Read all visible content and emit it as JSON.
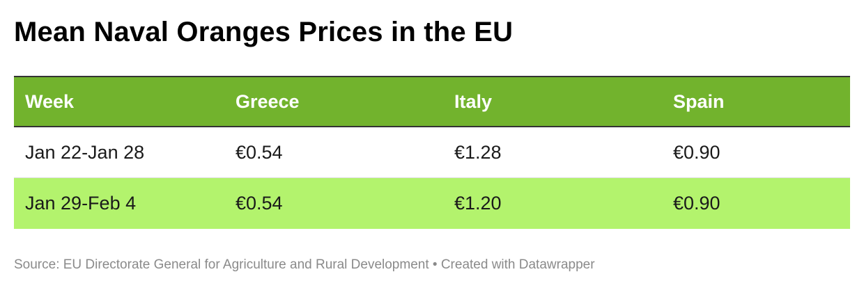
{
  "title": "Mean Naval Oranges Prices in the EU",
  "colors": {
    "header_bg": "#72b32d",
    "header_text": "#ffffff",
    "alt_row_bg": "#b3f36d",
    "row_bg": "#ffffff",
    "source_text": "#8a8a8a"
  },
  "chart_data": {
    "type": "table",
    "title": "Mean Naval Oranges Prices in the EU",
    "columns": [
      "Week",
      "Greece",
      "Italy",
      "Spain"
    ],
    "rows": [
      [
        "Jan 22-Jan 28",
        "€0.54",
        "€1.28",
        "€0.90"
      ],
      [
        "Jan 29-Feb 4",
        "€0.54",
        "€1.20",
        "€0.90"
      ]
    ],
    "series": [
      {
        "name": "Greece",
        "values": [
          0.54,
          0.54
        ]
      },
      {
        "name": "Italy",
        "values": [
          1.28,
          1.2
        ]
      },
      {
        "name": "Spain",
        "values": [
          0.9,
          0.9
        ]
      }
    ],
    "categories": [
      "Jan 22-Jan 28",
      "Jan 29-Feb 4"
    ]
  },
  "footer": {
    "source": "Source: EU Directorate General for Agriculture and Rural Development • Created with Datawrapper"
  }
}
